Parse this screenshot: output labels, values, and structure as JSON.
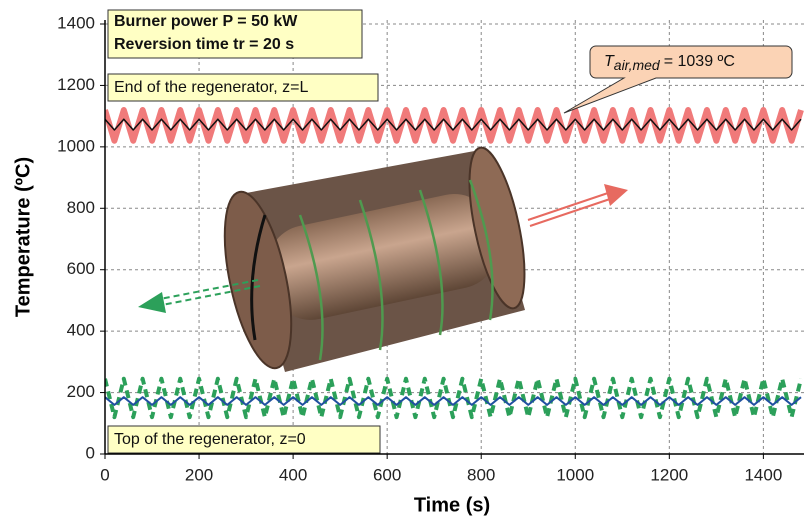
{
  "chart_data": {
    "type": "line",
    "xlabel": "Time (s)",
    "ylabel": "Temperature (ºC)",
    "xlim": [
      0,
      1480
    ],
    "ylim": [
      0,
      1400
    ],
    "xticks": [
      0,
      200,
      400,
      600,
      800,
      1000,
      1200,
      1400
    ],
    "yticks": [
      0,
      200,
      400,
      600,
      800,
      1000,
      1200,
      1400
    ],
    "grid": true,
    "annotations": {
      "power": "Burner power P = 50 kW",
      "reversion": "Reversion time tr = 20 s",
      "end": "End of the regenerator,  z=L",
      "top": "Top of the regenerator,  z=0",
      "callout": {
        "symbol": "T",
        "subscript": "air,med",
        "text": "= 1039 ºC"
      }
    },
    "x": [
      0,
      20,
      40,
      60,
      80,
      100,
      120,
      140,
      160,
      180,
      200,
      220,
      240,
      260,
      280,
      300,
      320,
      340,
      360,
      380,
      400,
      420,
      440,
      460,
      480,
      500,
      520,
      540,
      560,
      580,
      600,
      620,
      640,
      660,
      680,
      700,
      720,
      740,
      760,
      780,
      800,
      820,
      840,
      860,
      880,
      900,
      920,
      940,
      960,
      980,
      1000,
      1020,
      1040,
      1060,
      1080,
      1100,
      1120,
      1140,
      1160,
      1180,
      1200,
      1220,
      1240,
      1260,
      1280,
      1300,
      1320,
      1340,
      1360,
      1380,
      1400,
      1420,
      1440,
      1460,
      1480
    ],
    "series": [
      {
        "color": "#f07a7a",
        "width": 6,
        "dashed": false,
        "values": [
          1120,
          1020,
          1120,
          1020,
          1120,
          1020,
          1120,
          1020,
          1120,
          1020,
          1120,
          1020,
          1120,
          1020,
          1120,
          1020,
          1120,
          1020,
          1120,
          1020,
          1120,
          1020,
          1120,
          1020,
          1120,
          1020,
          1120,
          1020,
          1120,
          1020,
          1120,
          1020,
          1120,
          1020,
          1120,
          1020,
          1120,
          1020,
          1120,
          1020,
          1120,
          1020,
          1120,
          1020,
          1120,
          1020,
          1120,
          1020,
          1120,
          1020,
          1120,
          1020,
          1120,
          1020,
          1120,
          1020,
          1120,
          1020,
          1120,
          1020,
          1120,
          1020,
          1120,
          1020,
          1120,
          1020,
          1120,
          1020,
          1120,
          1020,
          1120,
          1020,
          1120,
          1020,
          1120
        ]
      },
      {
        "color": "#111111",
        "width": 1.5,
        "dashed": false,
        "values": [
          1090,
          1055,
          1090,
          1055,
          1090,
          1055,
          1090,
          1055,
          1090,
          1055,
          1090,
          1055,
          1090,
          1055,
          1090,
          1055,
          1090,
          1055,
          1090,
          1055,
          1090,
          1055,
          1090,
          1055,
          1090,
          1055,
          1090,
          1055,
          1090,
          1055,
          1090,
          1055,
          1090,
          1055,
          1090,
          1055,
          1090,
          1055,
          1090,
          1055,
          1090,
          1055,
          1090,
          1055,
          1090,
          1055,
          1090,
          1055,
          1090,
          1055,
          1090,
          1055,
          1090,
          1055,
          1090,
          1055,
          1090,
          1055,
          1090,
          1055,
          1090,
          1055,
          1090,
          1055,
          1090,
          1055,
          1090,
          1055,
          1090,
          1055,
          1090,
          1055,
          1090,
          1055,
          1090
        ]
      },
      {
        "color": "#2ca05a",
        "width": 4,
        "dashed": true,
        "values": [
          245,
          120,
          245,
          120,
          245,
          120,
          245,
          120,
          245,
          120,
          245,
          120,
          245,
          120,
          245,
          120,
          245,
          120,
          245,
          120,
          245,
          120,
          245,
          120,
          245,
          120,
          245,
          120,
          245,
          120,
          245,
          120,
          245,
          120,
          245,
          120,
          245,
          120,
          245,
          120,
          245,
          120,
          245,
          120,
          245,
          120,
          245,
          120,
          245,
          120,
          245,
          120,
          245,
          120,
          245,
          120,
          245,
          120,
          245,
          120,
          245,
          120,
          245,
          120,
          245,
          120,
          245,
          120,
          245,
          120,
          245,
          120,
          245,
          120,
          245
        ]
      },
      {
        "color": "#2050a0",
        "width": 2,
        "dashed": false,
        "values": [
          185,
          160,
          185,
          160,
          185,
          160,
          185,
          160,
          185,
          160,
          185,
          160,
          185,
          160,
          185,
          160,
          185,
          160,
          185,
          160,
          185,
          160,
          185,
          160,
          185,
          160,
          185,
          160,
          185,
          160,
          185,
          160,
          185,
          160,
          185,
          160,
          185,
          160,
          185,
          160,
          185,
          160,
          185,
          160,
          185,
          160,
          185,
          160,
          185,
          160,
          185,
          160,
          185,
          160,
          185,
          160,
          185,
          160,
          185,
          160,
          185,
          160,
          185,
          160,
          185,
          160,
          185,
          160,
          185,
          160,
          185,
          160,
          185,
          160,
          185
        ]
      }
    ]
  }
}
